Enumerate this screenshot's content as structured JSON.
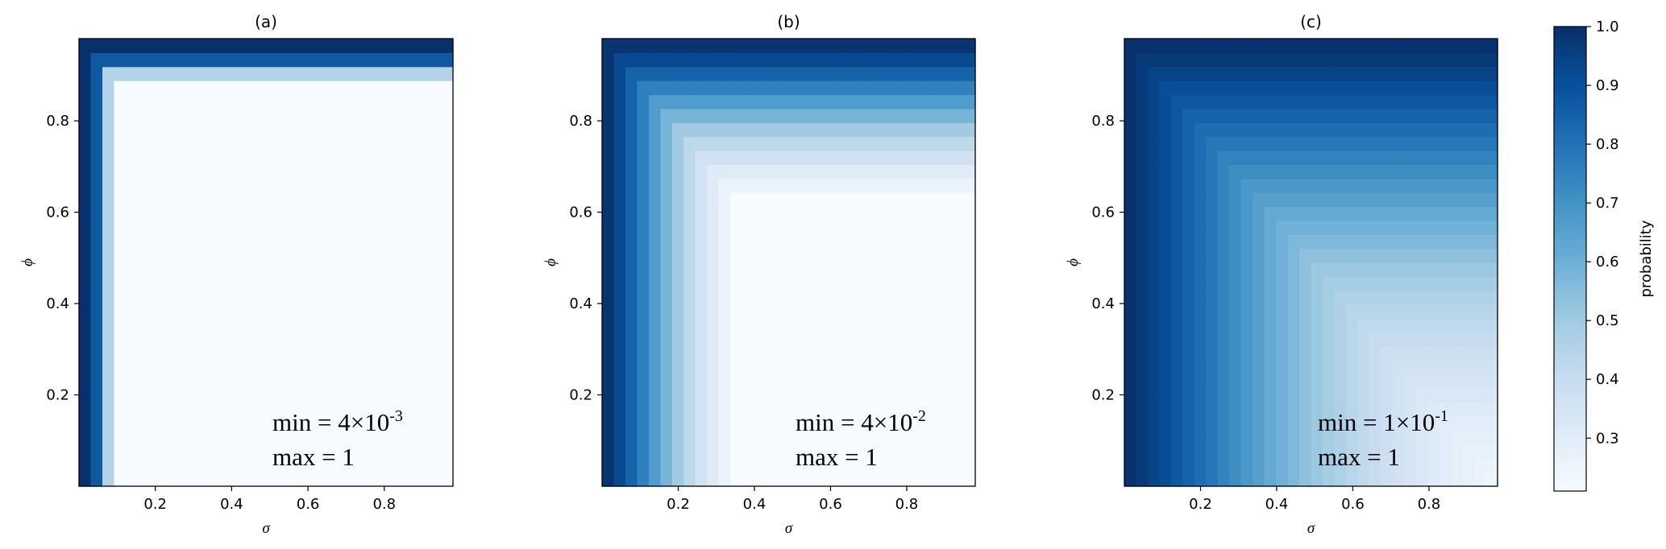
{
  "chart_data": [
    {
      "type": "heatmap",
      "title": "(a)",
      "xlabel": "σ",
      "ylabel": "ϕ",
      "xlim": [
        0.0,
        0.98
      ],
      "ylim": [
        0.0,
        0.98
      ],
      "xticks": [
        "0.2",
        "0.4",
        "0.6",
        "0.8"
      ],
      "yticks": [
        "0.2",
        "0.4",
        "0.6",
        "0.8"
      ],
      "grid": false,
      "annotation": {
        "min_label": "min = 4×10",
        "min_exp": "-3",
        "max_label": "max = 1"
      },
      "min": 0.004,
      "max": 1
    },
    {
      "type": "heatmap",
      "title": "(b)",
      "xlabel": "σ",
      "ylabel": "ϕ",
      "xlim": [
        0.0,
        0.98
      ],
      "ylim": [
        0.0,
        0.98
      ],
      "xticks": [
        "0.2",
        "0.4",
        "0.6",
        "0.8"
      ],
      "yticks": [
        "0.2",
        "0.4",
        "0.6",
        "0.8"
      ],
      "grid": false,
      "annotation": {
        "min_label": "min = 4×10",
        "min_exp": "-2",
        "max_label": "max = 1"
      },
      "min": 0.04,
      "max": 1
    },
    {
      "type": "heatmap",
      "title": "(c)",
      "xlabel": "σ",
      "ylabel": "ϕ",
      "xlim": [
        0.0,
        0.98
      ],
      "ylim": [
        0.0,
        0.98
      ],
      "xticks": [
        "0.2",
        "0.4",
        "0.6",
        "0.8"
      ],
      "yticks": [
        "0.2",
        "0.4",
        "0.6",
        "0.8"
      ],
      "grid": false,
      "annotation": {
        "min_label": "min = 1×10",
        "min_exp": "-1",
        "max_label": "max = 1"
      },
      "min": 0.1,
      "max": 1
    }
  ],
  "colorbar": {
    "label": "probability",
    "range": [
      0.21,
      1.0
    ],
    "ticks": [
      "0.3",
      "0.4",
      "0.5",
      "0.6",
      "0.7",
      "0.8",
      "0.9",
      "1.0"
    ],
    "colormap": "Blues",
    "color_low": "#f7fbff",
    "color_high": "#08306b"
  }
}
